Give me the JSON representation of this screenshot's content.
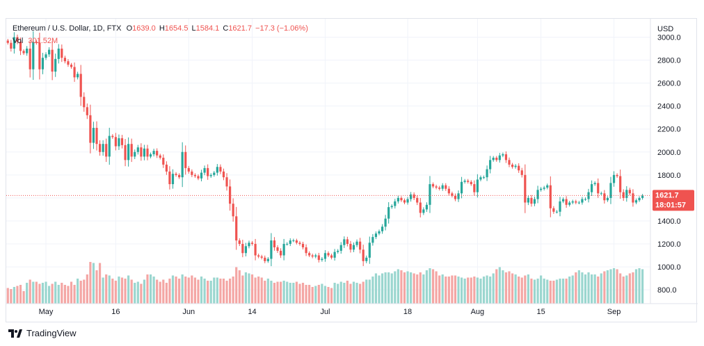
{
  "legend": {
    "symbol": "Ethereum / U.S. Dollar, 1D, FTX",
    "o_label": "O",
    "o_value": "1639.0",
    "h_label": "H",
    "h_value": "1654.5",
    "l_label": "L",
    "l_value": "1584.1",
    "c_label": "C",
    "c_value": "1621.7",
    "change": "−17.3 (−1.06%)",
    "vol_label": "Vol",
    "vol_value": "301.52M"
  },
  "price_axis": {
    "currency": "USD",
    "ticks": [
      "3000.0",
      "2800.0",
      "2600.0",
      "2400.0",
      "2200.0",
      "2000.0",
      "1800.0",
      "1600.0",
      "1400.0",
      "1200.0",
      "1000.0",
      "800.0"
    ]
  },
  "last_price": {
    "value": "1621.7",
    "countdown": "18:01:57"
  },
  "time_axis": {
    "labels": [
      "May",
      "16",
      "Jun",
      "14",
      "Jul",
      "18",
      "Aug",
      "15",
      "Sep"
    ]
  },
  "brand": {
    "name": "TradingView",
    "logo": "tradingview-logo-icon"
  },
  "colors": {
    "up": "#26a69a",
    "down": "#ef5350",
    "up_volume": "#9ad6cf",
    "down_volume": "#f4a6a4"
  },
  "chart_data": {
    "type": "candlestick",
    "title": "Ethereum / U.S. Dollar, 1D, FTX",
    "ylabel": "USD",
    "ylim": [
      680,
      3160
    ],
    "grid": true,
    "x_tick_labels": [
      "May",
      "16",
      "Jun",
      "14",
      "Jul",
      "18",
      "Aug",
      "15",
      "Sep"
    ],
    "series": [
      {
        "name": "price",
        "close": [
          2950,
          2900,
          3000,
          2960,
          2880,
          2860,
          2900,
          2720,
          2960,
          2950,
          2720,
          2820,
          2850,
          2890,
          2700,
          2810,
          2900,
          2820,
          2790,
          2760,
          2740,
          2650,
          2680,
          2480,
          2390,
          2320,
          2080,
          2210,
          2070,
          2000,
          2070,
          1960,
          2140,
          2130,
          2050,
          2120,
          2060,
          1930,
          2070,
          1960,
          2000,
          2040,
          1960,
          2030,
          1960,
          1980,
          2010,
          1970,
          1950,
          1890,
          1830,
          1720,
          1810,
          1800,
          1780,
          2000,
          1860,
          1830,
          1800,
          1790,
          1770,
          1820,
          1860,
          1790,
          1800,
          1820,
          1870,
          1830,
          1780,
          1700,
          1550,
          1440,
          1230,
          1200,
          1120,
          1180,
          1210,
          1200,
          1100,
          1090,
          1080,
          1050,
          1070,
          1230,
          1170,
          1140,
          1100,
          1200,
          1200,
          1230,
          1230,
          1210,
          1200,
          1170,
          1120,
          1100,
          1090,
          1100,
          1060,
          1070,
          1120,
          1100,
          1080,
          1130,
          1140,
          1190,
          1240,
          1200,
          1150,
          1190,
          1220,
          1150,
          1050,
          1080,
          1210,
          1260,
          1290,
          1310,
          1350,
          1420,
          1520,
          1530,
          1570,
          1600,
          1580,
          1560,
          1590,
          1630,
          1600,
          1560,
          1470,
          1500,
          1540,
          1720,
          1700,
          1690,
          1680,
          1710,
          1680,
          1640,
          1620,
          1590,
          1640,
          1740,
          1750,
          1740,
          1720,
          1650,
          1760,
          1780,
          1780,
          1850,
          1930,
          1950,
          1930,
          1970,
          1980,
          1930,
          1890,
          1870,
          1880,
          1840,
          1800,
          1560,
          1600,
          1550,
          1590,
          1670,
          1680,
          1690,
          1710,
          1510,
          1480,
          1480,
          1570,
          1590,
          1540,
          1560,
          1570,
          1560,
          1560,
          1590,
          1590,
          1650,
          1720,
          1730,
          1640,
          1640,
          1580,
          1600,
          1730,
          1800,
          1790,
          1650,
          1600,
          1670,
          1640,
          1560,
          1580,
          1600,
          1620
        ]
      },
      {
        "name": "Vol",
        "volume": [
          150,
          140,
          160,
          170,
          180,
          120,
          200,
          230,
          210,
          210,
          190,
          200,
          210,
          170,
          190,
          210,
          180,
          200,
          180,
          170,
          210,
          180,
          240,
          220,
          230,
          280,
          400,
          390,
          320,
          390,
          250,
          280,
          270,
          240,
          220,
          260,
          250,
          240,
          270,
          230,
          200,
          210,
          190,
          230,
          280,
          280,
          260,
          230,
          210,
          230,
          200,
          240,
          270,
          260,
          240,
          280,
          260,
          250,
          270,
          250,
          230,
          260,
          240,
          220,
          220,
          250,
          250,
          240,
          240,
          220,
          240,
          260,
          350,
          320,
          270,
          300,
          290,
          280,
          250,
          260,
          250,
          220,
          240,
          220,
          200,
          210,
          210,
          220,
          210,
          200,
          200,
          210,
          190,
          200,
          180,
          180,
          160,
          170,
          180,
          190,
          170,
          160,
          150,
          200,
          190,
          210,
          200,
          220,
          190,
          210,
          200,
          190,
          210,
          230,
          230,
          260,
          290,
          270,
          290,
          300,
          300,
          290,
          310,
          330,
          320,
          300,
          310,
          300,
          290,
          280,
          300,
          280,
          320,
          340,
          330,
          310,
          270,
          280,
          260,
          260,
          270,
          270,
          260,
          250,
          240,
          250,
          250,
          260,
          250,
          240,
          260,
          270,
          260,
          290,
          330,
          350,
          320,
          300,
          310,
          290,
          280,
          260,
          250,
          270,
          280,
          240,
          230,
          240,
          270,
          240,
          230,
          220,
          220,
          230,
          240,
          240,
          240,
          260,
          270,
          300,
          320,
          300,
          280,
          300,
          280,
          280,
          260,
          290,
          310,
          320,
          330,
          340,
          330,
          290,
          260,
          270,
          290,
          300,
          330,
          340,
          330,
          270
        ]
      }
    ]
  }
}
